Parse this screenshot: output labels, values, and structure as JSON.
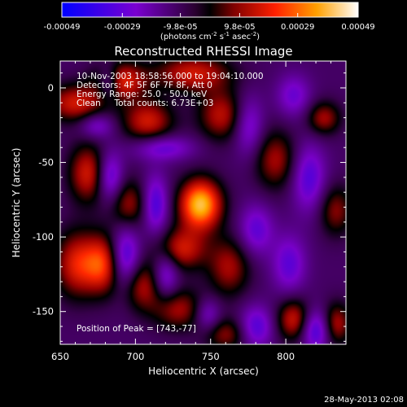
{
  "chart_data": {
    "type": "heatmap",
    "title": "Reconstructed RHESSI Image",
    "xlabel": "Heliocentric X (arcsec)",
    "ylabel": "Heliocentric Y (arcsec)",
    "xlim": [
      650,
      840
    ],
    "ylim": [
      -172,
      18
    ],
    "xticks": [
      650,
      700,
      750,
      800
    ],
    "yticks": [
      0,
      -50,
      -100,
      -150
    ],
    "colorbar": {
      "ticks": [
        "-0.00049",
        "-0.00029",
        "-9.8e-05",
        "9.8e-05",
        "0.00029",
        "0.00049"
      ],
      "units_prefix": "(photons cm",
      "units_exp1": "-2",
      "units_mid": " s",
      "units_exp2": "-1",
      "units_mid2": " asec",
      "units_exp3": "-2",
      "units_suffix": ")",
      "range": [
        -0.00049,
        0.00049
      ]
    },
    "annotations": [
      "10-Nov-2003 18:58:56.000 to 19:04:10.000",
      "Detectors: 4F 5F 6F 7F 8F, Att 0",
      "Energy Range: 25.0 - 50.0 keV",
      "Clean     Total counts: 6.73E+03"
    ],
    "peak_label": "Position of Peak = [743,-77]",
    "peak": [
      743,
      -77
    ],
    "blobs": [
      {
        "x": 743,
        "y": -78,
        "sx": 10,
        "sy": 12,
        "a": 1.0
      },
      {
        "x": 660,
        "y": -10,
        "sx": 14,
        "sy": 9,
        "a": 0.55
      },
      {
        "x": 690,
        "y": 5,
        "sx": 12,
        "sy": 9,
        "a": 0.6
      },
      {
        "x": 738,
        "y": 10,
        "sx": 18,
        "sy": 9,
        "a": 0.55
      },
      {
        "x": 708,
        "y": -22,
        "sx": 12,
        "sy": 10,
        "a": 0.55
      },
      {
        "x": 757,
        "y": -18,
        "sx": 11,
        "sy": 12,
        "a": 0.5
      },
      {
        "x": 793,
        "y": -48,
        "sx": 10,
        "sy": 14,
        "a": 0.45
      },
      {
        "x": 668,
        "y": -57,
        "sx": 9,
        "sy": 14,
        "a": 0.55
      },
      {
        "x": 695,
        "y": -78,
        "sx": 9,
        "sy": 12,
        "a": 0.45
      },
      {
        "x": 660,
        "y": -118,
        "sx": 10,
        "sy": 16,
        "a": 0.55
      },
      {
        "x": 678,
        "y": -118,
        "sx": 9,
        "sy": 14,
        "a": 0.65
      },
      {
        "x": 703,
        "y": -132,
        "sx": 10,
        "sy": 12,
        "a": 0.5
      },
      {
        "x": 730,
        "y": -108,
        "sx": 12,
        "sy": 10,
        "a": 0.55
      },
      {
        "x": 762,
        "y": -120,
        "sx": 10,
        "sy": 14,
        "a": 0.45
      },
      {
        "x": 728,
        "y": -148,
        "sx": 12,
        "sy": 10,
        "a": 0.45
      },
      {
        "x": 825,
        "y": -20,
        "sx": 8,
        "sy": 8,
        "a": 0.45
      },
      {
        "x": 833,
        "y": -82,
        "sx": 8,
        "sy": 12,
        "a": 0.4
      },
      {
        "x": 805,
        "y": -155,
        "sx": 8,
        "sy": 10,
        "a": 0.55
      },
      {
        "x": 833,
        "y": -158,
        "sx": 7,
        "sy": 10,
        "a": 0.5
      },
      {
        "x": 760,
        "y": -165,
        "sx": 10,
        "sy": 8,
        "a": 0.4
      },
      {
        "x": 682,
        "y": 4,
        "sx": 5,
        "sy": 8,
        "a": -0.45
      },
      {
        "x": 674,
        "y": -25,
        "sx": 8,
        "sy": 6,
        "a": -0.35
      },
      {
        "x": 718,
        "y": -40,
        "sx": 14,
        "sy": 6,
        "a": -0.4
      },
      {
        "x": 683,
        "y": -60,
        "sx": 6,
        "sy": 12,
        "a": -0.5
      },
      {
        "x": 713,
        "y": -78,
        "sx": 6,
        "sy": 14,
        "a": -0.5
      },
      {
        "x": 693,
        "y": -115,
        "sx": 7,
        "sy": 16,
        "a": -0.6
      },
      {
        "x": 720,
        "y": -125,
        "sx": 6,
        "sy": 12,
        "a": -0.45
      },
      {
        "x": 780,
        "y": -95,
        "sx": 8,
        "sy": 12,
        "a": -0.4
      },
      {
        "x": 775,
        "y": -25,
        "sx": 7,
        "sy": 14,
        "a": -0.4
      },
      {
        "x": 805,
        "y": -5,
        "sx": 8,
        "sy": 10,
        "a": -0.35
      },
      {
        "x": 815,
        "y": -60,
        "sx": 8,
        "sy": 16,
        "a": -0.45
      },
      {
        "x": 802,
        "y": -118,
        "sx": 8,
        "sy": 14,
        "a": -0.4
      },
      {
        "x": 780,
        "y": -160,
        "sx": 8,
        "sy": 10,
        "a": -0.45
      },
      {
        "x": 820,
        "y": -162,
        "sx": 7,
        "sy": 10,
        "a": -0.55
      },
      {
        "x": 748,
        "y": -152,
        "sx": 6,
        "sy": 8,
        "a": -0.35
      }
    ]
  },
  "footer": {
    "timestamp": "28-May-2013 02:08"
  }
}
